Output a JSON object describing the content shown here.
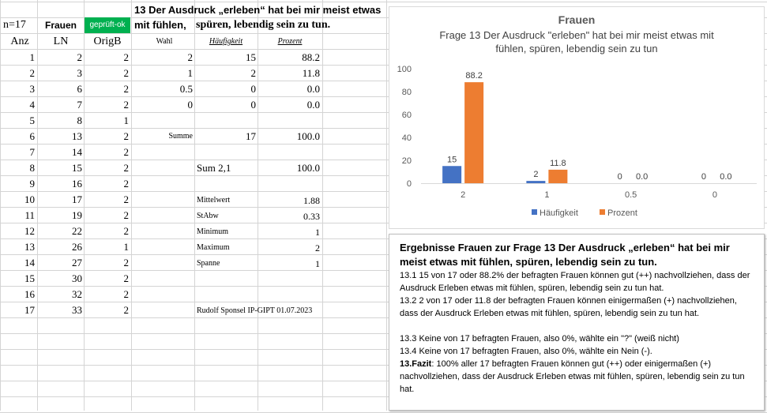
{
  "sheet": {
    "n_label": "n=17",
    "col_frauen": "Frauen",
    "col_gepr": "geprüft-ok",
    "title_line1": "13 Der Ausdruck „erleben“ hat bei mir meist etwas",
    "title_line2a": "mit fühlen,",
    "title_line2b": "spüren, lebendig sein zu tun.",
    "hdr_anz": "Anz",
    "hdr_ln": "LN",
    "hdr_origb": "OrigB",
    "hdr_wahl": "Wahl",
    "hdr_haeufigkeit": "Häufigkeit",
    "hdr_prozent": "Prozent",
    "rows": [
      {
        "anz": "1",
        "ln": "2",
        "origb": "2"
      },
      {
        "anz": "2",
        "ln": "3",
        "origb": "2"
      },
      {
        "anz": "3",
        "ln": "6",
        "origb": "2"
      },
      {
        "anz": "4",
        "ln": "7",
        "origb": "2"
      },
      {
        "anz": "5",
        "ln": "8",
        "origb": "1"
      },
      {
        "anz": "6",
        "ln": "13",
        "origb": "2"
      },
      {
        "anz": "7",
        "ln": "14",
        "origb": "2"
      },
      {
        "anz": "8",
        "ln": "15",
        "origb": "2"
      },
      {
        "anz": "9",
        "ln": "16",
        "origb": "2"
      },
      {
        "anz": "10",
        "ln": "17",
        "origb": "2"
      },
      {
        "anz": "11",
        "ln": "19",
        "origb": "2"
      },
      {
        "anz": "12",
        "ln": "22",
        "origb": "2"
      },
      {
        "anz": "13",
        "ln": "26",
        "origb": "1"
      },
      {
        "anz": "14",
        "ln": "27",
        "origb": "2"
      },
      {
        "anz": "15",
        "ln": "30",
        "origb": "2"
      },
      {
        "anz": "16",
        "ln": "32",
        "origb": "2"
      },
      {
        "anz": "17",
        "ln": "33",
        "origb": "2"
      }
    ],
    "freq": [
      {
        "wahl": "2",
        "haeuf": "15",
        "proz": "88.2"
      },
      {
        "wahl": "1",
        "haeuf": "2",
        "proz": "11.8"
      },
      {
        "wahl": "0.5",
        "haeuf": "0",
        "proz": "0.0"
      },
      {
        "wahl": "0",
        "haeuf": "0",
        "proz": "0.0"
      }
    ],
    "summe_label": "Summe",
    "summe_haeuf": "17",
    "summe_proz": "100.0",
    "sum21_label": "Sum 2,1",
    "sum21_proz": "100.0",
    "stats": [
      {
        "label": "Mittelwert",
        "value": "1.88"
      },
      {
        "label": "StAbw",
        "value": "0.33"
      },
      {
        "label": "Minimum",
        "value": "1"
      },
      {
        "label": "Maximum",
        "value": "2"
      },
      {
        "label": "Spanne",
        "value": "1"
      }
    ],
    "credit": "Rudolf Sponsel IP-GIPT 01.07.2023"
  },
  "chart_data": {
    "type": "bar",
    "title": "Frauen",
    "subtitle_line1": "Frage 13 Der Ausdruck \"erleben\" hat bei mir meist etwas mit",
    "subtitle_line2": "fühlen,   spüren, lebendig sein zu tun",
    "categories": [
      "2",
      "1",
      "0.5",
      "0"
    ],
    "series": [
      {
        "name": "Häufigkeit",
        "values": [
          15,
          2,
          0,
          0
        ],
        "labels": [
          "15",
          "2",
          "0",
          "0"
        ],
        "color": "#4472c4"
      },
      {
        "name": "Prozent",
        "values": [
          88.2,
          11.8,
          0,
          0
        ],
        "labels": [
          "88.2",
          "11.8",
          "0.0",
          "0.0"
        ],
        "color": "#ed7d31"
      }
    ],
    "ylim": [
      0,
      100
    ],
    "yticks": [
      "0",
      "20",
      "40",
      "60",
      "80",
      "100"
    ],
    "grid": false,
    "legend": "bottom"
  },
  "results": {
    "heading": "Ergebnisse Frauen zur Frage 13 Der Ausdruck „erleben“ hat bei mir meist etwas mit fühlen, spüren, lebendig sein zu tun.",
    "p1": "13.1   15 von 17 oder 88.2% der befragten Frauen können gut (++) nachvollziehen, dass der Ausdruck Erleben etwas mit fühlen, spüren, lebendig sein zu tun hat.",
    "p2": "13.2  2 von 17 oder 11.8 der befragten Frauen können einigermaßen (+) nachvollziehen, dass der Ausdruck Erleben etwas mit fühlen, spüren, lebendig sein zu tun hat.",
    "p3": "13.3  Keine von 17 befragten Frauen, also 0%, wählte ein \"?\" (weiß nicht)",
    "p4": "13.4  Keine von 17 befragten Frauen, also 0%, wählte ein Nein (-).",
    "p5_bold": "13.Fazit",
    "p5_rest": ": 100% aller 17 befragten Frauen können gut (++) oder einigermaßen (+) nachvollziehen, dass der Ausdruck Erleben etwas mit fühlen, spüren, lebendig sein zu tun hat."
  }
}
